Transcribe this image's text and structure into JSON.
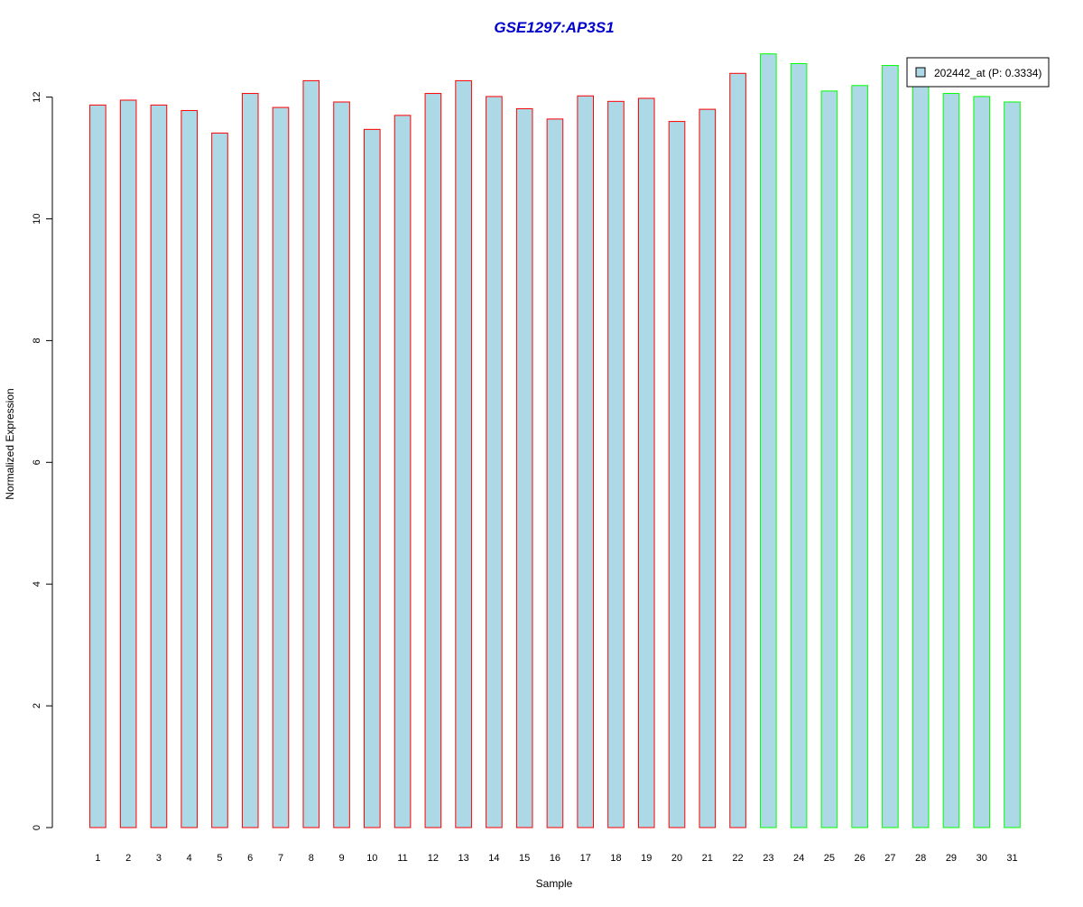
{
  "chart_data": {
    "type": "bar",
    "title": "GSE1297:AP3S1",
    "xlabel": "Sample",
    "ylabel": "Normalized Expression",
    "categories": [
      "1",
      "2",
      "3",
      "4",
      "5",
      "6",
      "7",
      "8",
      "9",
      "10",
      "11",
      "12",
      "13",
      "14",
      "15",
      "16",
      "17",
      "18",
      "19",
      "20",
      "21",
      "22",
      "23",
      "24",
      "25",
      "26",
      "27",
      "28",
      "29",
      "30",
      "31"
    ],
    "values": [
      11.87,
      11.95,
      11.87,
      11.78,
      11.41,
      12.06,
      11.83,
      12.27,
      11.92,
      11.47,
      11.7,
      12.06,
      12.27,
      12.01,
      11.81,
      11.64,
      12.02,
      11.93,
      11.98,
      11.6,
      11.8,
      12.39,
      12.71,
      12.55,
      12.1,
      12.19,
      12.52,
      12.22,
      12.06,
      12.01,
      11.92
    ],
    "groups": [
      "A",
      "A",
      "A",
      "A",
      "A",
      "A",
      "A",
      "A",
      "A",
      "A",
      "A",
      "A",
      "A",
      "A",
      "A",
      "A",
      "A",
      "A",
      "A",
      "A",
      "A",
      "A",
      "B",
      "B",
      "B",
      "B",
      "B",
      "B",
      "B",
      "B",
      "B"
    ],
    "group_colors": {
      "A": "#ff0000",
      "B": "#00ff00"
    },
    "bar_fill": "#add8e6",
    "title_color": "#0000cc",
    "ylim": [
      0,
      12.8
    ],
    "yticks": [
      0,
      2,
      4,
      6,
      8,
      10,
      12
    ],
    "grid": false,
    "legend": {
      "position": "top-right",
      "entries": [
        {
          "label": "202442_at (P: 0.3334)",
          "color": "#add8e6"
        }
      ]
    }
  }
}
